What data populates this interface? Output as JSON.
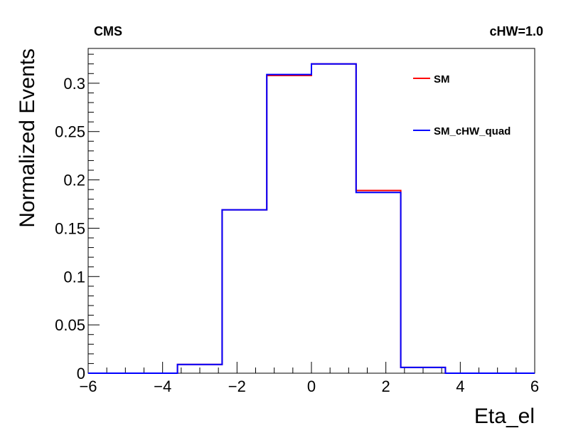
{
  "header": {
    "left_label": "CMS",
    "right_label": "cHW=1.0"
  },
  "chart_data": {
    "type": "line",
    "xlabel": "Eta_el",
    "ylabel": "Normalized Events",
    "xlim": [
      -6,
      6
    ],
    "ylim": [
      0,
      0.336
    ],
    "x_ticks": [
      -6,
      -4,
      -2,
      0,
      2,
      4,
      6
    ],
    "x_tick_labels": [
      "−6",
      "−4",
      "−2",
      "0",
      "2",
      "4",
      "6"
    ],
    "y_ticks": [
      0,
      0.05,
      0.1,
      0.15,
      0.2,
      0.25,
      0.3
    ],
    "y_tick_labels": [
      "0",
      "0.05",
      "0.1",
      "0.15",
      "0.2",
      "0.25",
      "0.3"
    ],
    "bin_edges": [
      -6,
      -4.8,
      -3.6,
      -2.4,
      -1.2,
      0,
      1.2,
      2.4,
      3.6,
      4.8,
      6
    ],
    "legend_position": "top-right",
    "series": [
      {
        "name": "SM",
        "color": "#ff0000",
        "values": [
          0,
          0,
          0.009,
          0.169,
          0.308,
          0.32,
          0.189,
          0.006,
          0,
          0
        ]
      },
      {
        "name": "SM_cHW_quad",
        "color": "#0000ff",
        "values": [
          0,
          0,
          0.009,
          0.169,
          0.309,
          0.32,
          0.187,
          0.006,
          0,
          0
        ]
      }
    ]
  }
}
